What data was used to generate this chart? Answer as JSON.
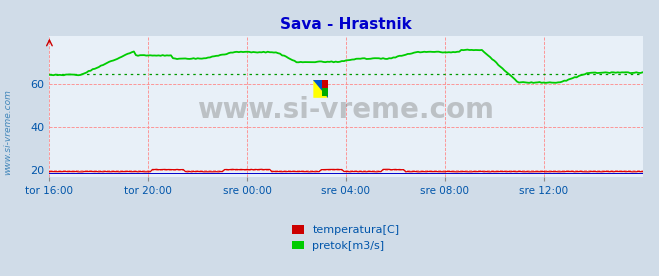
{
  "title": "Sava - Hrastnik",
  "title_color": "#0000cc",
  "bg_color": "#d0dce8",
  "plot_bg_color": "#e8f0f8",
  "watermark": "www.si-vreme.com",
  "xlabel_color": "#0055aa",
  "ylabel_color": "#0055aa",
  "yticks": [
    20,
    40,
    60
  ],
  "ylim": [
    17,
    82
  ],
  "xlim": [
    0,
    288
  ],
  "xtick_labels": [
    "tor 16:00",
    "tor 20:00",
    "sre 00:00",
    "sre 04:00",
    "sre 08:00",
    "sre 12:00"
  ],
  "xtick_positions": [
    0,
    48,
    96,
    144,
    192,
    240
  ],
  "grid_color": "#ff8888",
  "avg_line_color": "#009900",
  "avg_line_value": 64.5,
  "temperature_color": "#dd0000",
  "flow_color": "#00cc00",
  "legend_labels": [
    "temperatura[C]",
    "pretok[m3/s]"
  ],
  "legend_colors": [
    "#cc0000",
    "#00cc00"
  ],
  "rotated_label": "www.si-vreme.com",
  "rotated_label_color": "#4488bb",
  "arrow_color": "#cc0000",
  "blue_base_color": "#0000cc"
}
